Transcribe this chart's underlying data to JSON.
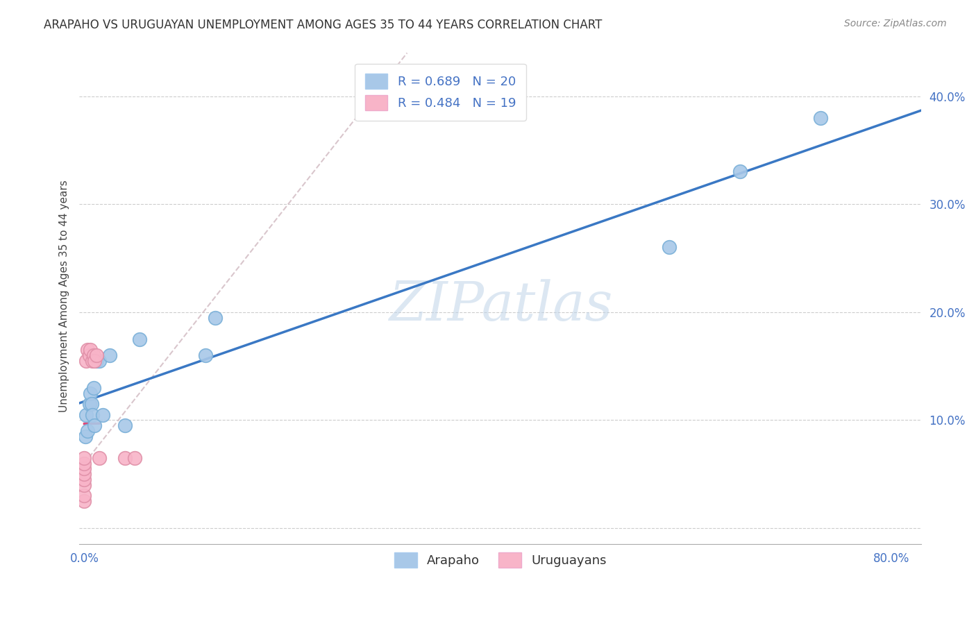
{
  "title": "ARAPAHO VS URUGUAYAN UNEMPLOYMENT AMONG AGES 35 TO 44 YEARS CORRELATION CHART",
  "source": "Source: ZipAtlas.com",
  "ylabel": "Unemployment Among Ages 35 to 44 years",
  "xlim": [
    -0.005,
    0.83
  ],
  "ylim": [
    -0.015,
    0.445
  ],
  "xticks": [
    0.0,
    0.1,
    0.2,
    0.3,
    0.4,
    0.5,
    0.6,
    0.7,
    0.8
  ],
  "xticklabels": [
    "0.0%",
    "",
    "",
    "",
    "",
    "",
    "",
    "",
    "80.0%"
  ],
  "yticks": [
    0.0,
    0.1,
    0.2,
    0.3,
    0.4
  ],
  "yticklabels": [
    "",
    "10.0%",
    "20.0%",
    "30.0%",
    "40.0%"
  ],
  "legend_r1": "R = 0.689   N = 20",
  "legend_r2": "R = 0.484   N = 19",
  "arapaho_color": "#a8c8e8",
  "uruguayan_color": "#f8b4c8",
  "trendline_arapaho_color": "#3a78c4",
  "trendline_uruguayan_color": "#e04878",
  "ref_line_color": "#d8b8c8",
  "watermark": "ZIPatlas",
  "arapaho_x": [
    0.001,
    0.002,
    0.003,
    0.005,
    0.006,
    0.007,
    0.008,
    0.009,
    0.01,
    0.012,
    0.015,
    0.018,
    0.025,
    0.04,
    0.055,
    0.12,
    0.13,
    0.58,
    0.65,
    0.73
  ],
  "arapaho_y": [
    0.085,
    0.105,
    0.09,
    0.115,
    0.125,
    0.115,
    0.105,
    0.13,
    0.095,
    0.155,
    0.155,
    0.105,
    0.16,
    0.095,
    0.175,
    0.16,
    0.195,
    0.26,
    0.33,
    0.38
  ],
  "uruguayan_x": [
    0.0,
    0.0,
    0.0,
    0.0,
    0.0,
    0.0,
    0.0,
    0.0,
    0.002,
    0.003,
    0.005,
    0.006,
    0.008,
    0.009,
    0.01,
    0.012,
    0.015,
    0.04,
    0.05
  ],
  "uruguayan_y": [
    0.025,
    0.03,
    0.04,
    0.045,
    0.05,
    0.055,
    0.06,
    0.065,
    0.155,
    0.165,
    0.16,
    0.165,
    0.155,
    0.16,
    0.155,
    0.16,
    0.065,
    0.065,
    0.065
  ],
  "background_color": "#ffffff",
  "grid_color": "#cccccc"
}
